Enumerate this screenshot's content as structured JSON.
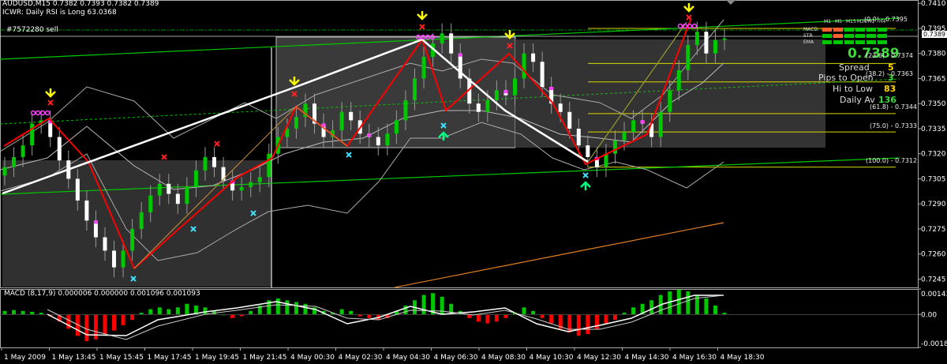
{
  "header": {
    "symbol_line": "AUDUSD,M15  0.7382 0.7393 0.7382 0.7389",
    "indicator_line": "ICWR: Daily RSI is Long 63.0368",
    "trade_label": "#7572280 sell"
  },
  "price_axis": {
    "labels": [
      "0.7410",
      "0.7395",
      "0.7389",
      "0.7380",
      "0.7365",
      "0.7350",
      "0.7335",
      "0.7320",
      "0.7305",
      "0.7290",
      "0.7275",
      "0.7260",
      "0.7245"
    ],
    "current_price_box": "0.7389",
    "marker_0_label": "(0.0)"
  },
  "fib_levels": [
    {
      "label": "(0.0) - 0.7395",
      "price": 0.7395
    },
    {
      "label": "(23.6) - 0.7374",
      "price": 0.7374
    },
    {
      "label": "(38.2) - 0.7363",
      "price": 0.7363
    },
    {
      "label": "(61.8) - 0.7344",
      "price": 0.7344
    },
    {
      "label": "(75.0) - 0.7333",
      "price": 0.7333
    },
    {
      "label": "(100.0) - 0.7312",
      "price": 0.7312
    }
  ],
  "info_panel": {
    "price": "0.7389",
    "spread_label": "Spread",
    "spread_value": "5",
    "pips_label": "Pips to Open",
    "pips_value": "3",
    "hilow_label": "Hi to Low",
    "hilow_value": "83",
    "daily_label": "Daily Av",
    "daily_value": "136"
  },
  "mtf_panel": {
    "timeframes": [
      "M1",
      "M5",
      "M15",
      "M30",
      "H1",
      "H4"
    ],
    "rows": [
      "MACD",
      "STR",
      "EMA"
    ]
  },
  "macd": {
    "label": "MACD  (8,17,9)  0.000006 0.000000 0.001096 0.001093",
    "axis_labels": [
      "0.001434",
      "0.00",
      "-0.001850"
    ]
  },
  "time_axis": {
    "labels": [
      "1 May 2009",
      "1 May 13:45",
      "1 May 15:45",
      "1 May 17:45",
      "1 May 19:45",
      "1 May 21:45",
      "4 May 00:30",
      "4 May 02:30",
      "4 May 04:30",
      "4 May 06:30",
      "4 May 08:30",
      "4 May 10:30",
      "4 May 12:30",
      "4 May 14:30",
      "4 May 16:30",
      "4 May 18:30"
    ]
  },
  "colors": {
    "bull_candle": "#00c800",
    "bear_candle": "#ffffff",
    "zigzag": "#ff0000",
    "macd_up": "#00c800",
    "macd_down": "#ff0000",
    "fib": "#d8d800",
    "arrow_down": "#ffff00",
    "arrow_up": "#00ff80",
    "cross_red": "#ff2020",
    "cross_cyan": "#40e0ff",
    "channel": "#00c800"
  },
  "chart_data": {
    "type": "candlestick",
    "symbol": "AUDUSD",
    "timeframe": "M15",
    "ohlc_last": {
      "open": 0.7382,
      "high": 0.7393,
      "low": 0.7382,
      "close": 0.7389
    },
    "ylim": [
      0.724,
      0.7412
    ],
    "y_ticks": [
      0.7395,
      0.738,
      0.7365,
      0.735,
      0.7335,
      0.732,
      0.7305,
      0.729,
      0.7275,
      0.726,
      0.7245
    ],
    "x_labels": [
      "1 May 2009",
      "1 May 13:45",
      "1 May 15:45",
      "1 May 17:45",
      "1 May 19:45",
      "1 May 21:45",
      "4 May 00:30",
      "4 May 02:30",
      "4 May 04:30",
      "4 May 06:30",
      "4 May 08:30",
      "4 May 10:30",
      "4 May 12:30",
      "4 May 14:30",
      "4 May 16:30",
      "4 May 18:30"
    ],
    "closes": [
      0.7312,
      0.7318,
      0.7325,
      0.7338,
      0.734,
      0.733,
      0.7316,
      0.7305,
      0.7292,
      0.728,
      0.727,
      0.7262,
      0.7252,
      0.7262,
      0.7275,
      0.7285,
      0.7295,
      0.7302,
      0.7296,
      0.729,
      0.73,
      0.731,
      0.7318,
      0.7312,
      0.7304,
      0.7298,
      0.73,
      0.7303,
      0.7306,
      0.732,
      0.733,
      0.7335,
      0.7342,
      0.735,
      0.7338,
      0.733,
      0.7334,
      0.7345,
      0.734,
      0.7332,
      0.733,
      0.7325,
      0.7332,
      0.734,
      0.7352,
      0.7365,
      0.7378,
      0.7386,
      0.7392,
      0.738,
      0.7365,
      0.735,
      0.7345,
      0.7352,
      0.7358,
      0.7355,
      0.7365,
      0.738,
      0.7375,
      0.736,
      0.735,
      0.7345,
      0.7335,
      0.7325,
      0.7318,
      0.7312,
      0.732,
      0.7328,
      0.7333,
      0.734,
      0.7338,
      0.733,
      0.7345,
      0.7358,
      0.737,
      0.7385,
      0.7393,
      0.738,
      0.7388,
      0.7389
    ],
    "macd_hist": [
      0.0002,
      0.00025,
      0.0002,
      0.00015,
      0.0001,
      -0.0001,
      -0.0004,
      -0.0008,
      -0.0012,
      -0.0015,
      -0.0014,
      -0.0011,
      -0.0009,
      -0.0006,
      -0.0003,
      0.0001,
      0.0003,
      0.0004,
      0.0003,
      0.0004,
      0.0006,
      0.0005,
      0.0004,
      0.0002,
      0.0,
      -0.0002,
      -0.0001,
      0.0002,
      0.0005,
      0.0008,
      0.0009,
      0.0008,
      0.0007,
      0.0006,
      0.0004,
      0.0002,
      0.0001,
      0.0003,
      0.0002,
      -0.0001,
      -0.0002,
      -0.0003,
      -0.0002,
      0.0002,
      0.0005,
      0.0008,
      0.0011,
      0.0012,
      0.001,
      0.0006,
      0.0002,
      -0.0002,
      -0.0004,
      -0.0005,
      -0.0004,
      -0.0002,
      0.0001,
      0.0004,
      0.0002,
      -0.0002,
      -0.0005,
      -0.0008,
      -0.001,
      -0.0012,
      -0.0011,
      -0.0008,
      -0.0005,
      -0.0003,
      0.0001,
      0.0004,
      0.0006,
      0.0008,
      0.0011,
      0.0013,
      0.0014,
      0.0013,
      0.0011,
      0.0009,
      0.0005,
      0.0001
    ]
  }
}
